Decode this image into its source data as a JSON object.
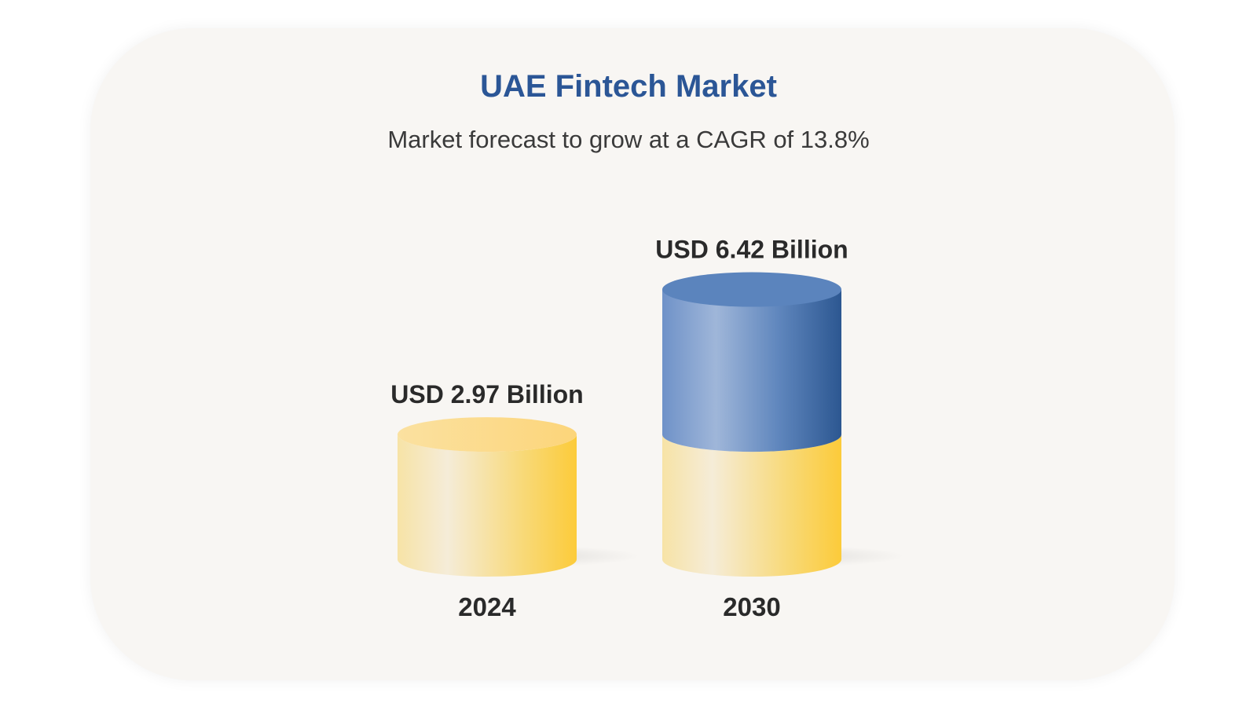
{
  "chart_data": {
    "type": "bar",
    "title": "UAE Fintech Market",
    "subtitle": "Market forecast to grow at a CAGR of 13.8%",
    "categories": [
      "2024",
      "2030"
    ],
    "values": [
      2.97,
      6.42
    ],
    "value_labels": [
      "USD 2.97 Billion",
      "USD 6.42 Billion"
    ],
    "units": "USD Billion",
    "cagr_percent": 13.8,
    "grid": false,
    "legend": "none",
    "colors": {
      "base_gold": "#f9cf45",
      "base_gold_light": "#f6ecd0",
      "growth_blue": "#2f5d99",
      "growth_blue_light": "#9ab3d8",
      "title": "#2b5696"
    }
  }
}
